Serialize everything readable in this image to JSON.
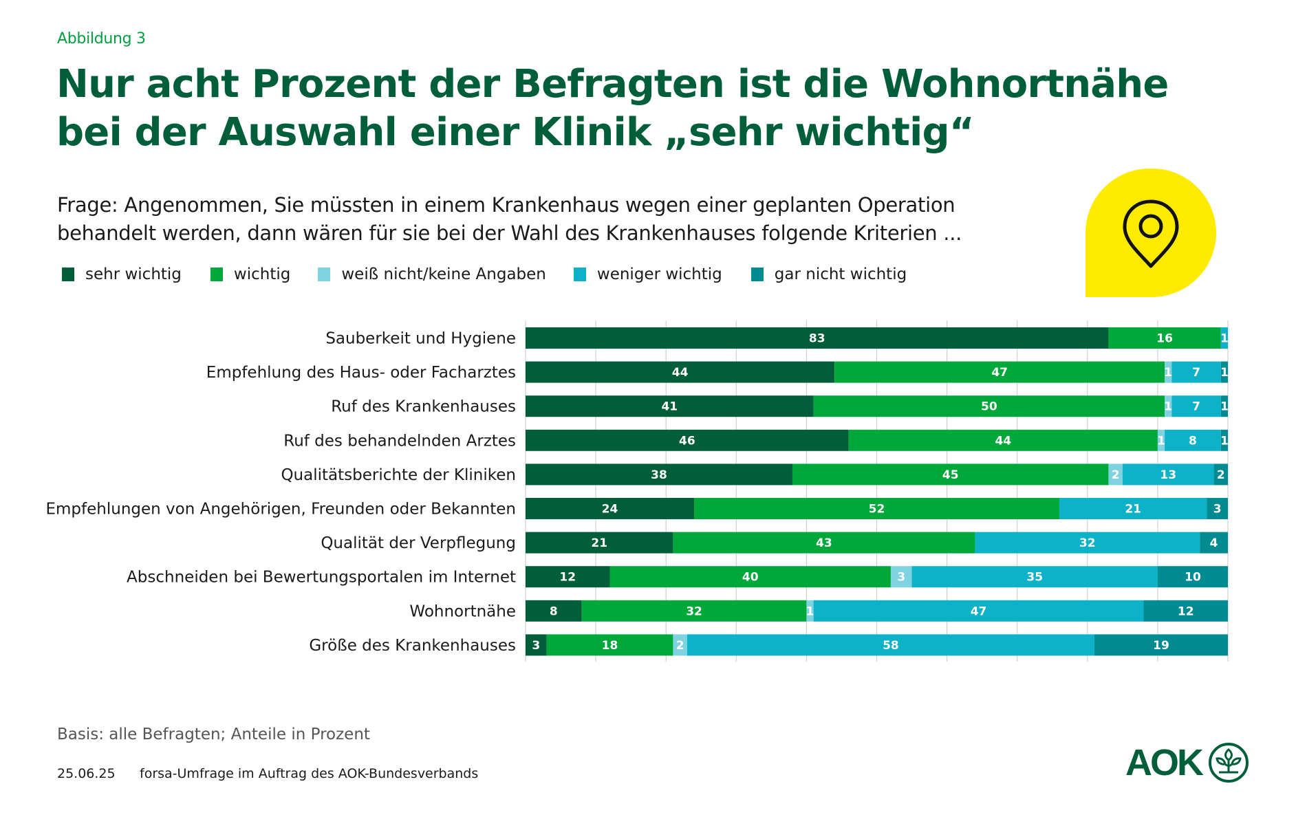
{
  "figure_label": "Abbildung 3",
  "title": {
    "line1": "Nur acht Prozent der Befragten ist die Wohnortnähe",
    "line2": "bei der Auswahl einer Klinik „sehr wichtig“"
  },
  "question": {
    "line1": "Frage: Angenommen, Sie müssten in einem Krankenhaus wegen einer geplanten Operation",
    "line2": "behandelt werden, dann wären für sie bei der Wahl des Krankenhauses folgende Kriterien ..."
  },
  "icon": "map-pin-icon",
  "colors": {
    "brand_green": "#005e3a",
    "accent_green": "#00a040",
    "yellow": "#ffeb00"
  },
  "chart_data": {
    "type": "bar",
    "orientation": "horizontal",
    "stacked": true,
    "title": "Nur acht Prozent der Befragten ist die Wohnortnähe bei der Auswahl einer Klinik „sehr wichtig“",
    "xlabel": "",
    "ylabel": "",
    "xlim": [
      0,
      100
    ],
    "grid": true,
    "legend_position": "top-left",
    "unit": "Prozent",
    "categories": [
      "Sauberkeit und Hygiene",
      "Empfehlung des Haus- oder Facharztes",
      "Ruf des Krankenhauses",
      "Ruf des behandelnden Arztes",
      "Qualitätsberichte der Kliniken",
      "Empfehlungen von Angehörigen, Freunden oder Bekannten",
      "Qualität der Verpflegung",
      "Abschneiden bei Bewertungsportalen im Internet",
      "Wohnortnähe",
      "Größe des Krankenhauses"
    ],
    "series": [
      {
        "name": "sehr wichtig",
        "color": "#005e3a",
        "values": [
          83,
          44,
          41,
          46,
          38,
          24,
          21,
          12,
          8,
          3
        ]
      },
      {
        "name": "wichtig",
        "color": "#00a83a",
        "values": [
          16,
          47,
          50,
          44,
          45,
          52,
          43,
          40,
          32,
          18
        ]
      },
      {
        "name": "weiß nicht/keine Angaben",
        "color": "#7fd3e0",
        "values": [
          0,
          1,
          1,
          1,
          2,
          0,
          0,
          3,
          1,
          2
        ]
      },
      {
        "name": "weniger wichtig",
        "color": "#0db1c8",
        "values": [
          1,
          7,
          7,
          8,
          13,
          21,
          32,
          35,
          47,
          58
        ]
      },
      {
        "name": "gar nicht wichtig",
        "color": "#008a92",
        "values": [
          0,
          1,
          1,
          1,
          2,
          3,
          4,
          10,
          12,
          19
        ]
      }
    ]
  },
  "footer": {
    "basis": "Basis: alle Befragten; Anteile in Prozent",
    "date": "25.06.25",
    "source": "forsa-Umfrage im Auftrag des AOK-Bundesverbands",
    "logo_text": "AOK"
  }
}
